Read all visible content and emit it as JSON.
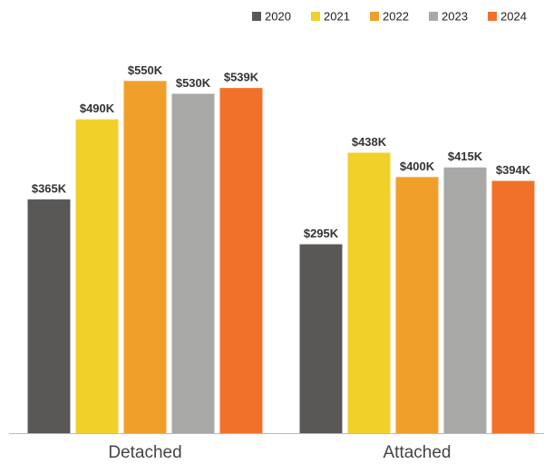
{
  "chart_data": {
    "type": "bar",
    "categories": [
      "Detached",
      "Attached"
    ],
    "series": [
      {
        "name": "2020",
        "color": "#595856",
        "values": [
          365,
          295
        ],
        "value_labels": [
          "$365K",
          "$295K"
        ]
      },
      {
        "name": "2021",
        "color": "#f2d02a",
        "values": [
          490,
          438
        ],
        "value_labels": [
          "$490K",
          "$438K"
        ]
      },
      {
        "name": "2022",
        "color": "#f0a02a",
        "values": [
          550,
          400
        ],
        "value_labels": [
          "$550K",
          "$400K"
        ]
      },
      {
        "name": "2023",
        "color": "#a8a8a7",
        "values": [
          530,
          415
        ],
        "value_labels": [
          "$530K",
          "$415K"
        ]
      },
      {
        "name": "2024",
        "color": "#f2712a",
        "values": [
          539,
          394
        ],
        "value_labels": [
          "$539K",
          "$394K"
        ]
      }
    ],
    "ylim": [
      0,
      600
    ],
    "legend": "top-right"
  }
}
